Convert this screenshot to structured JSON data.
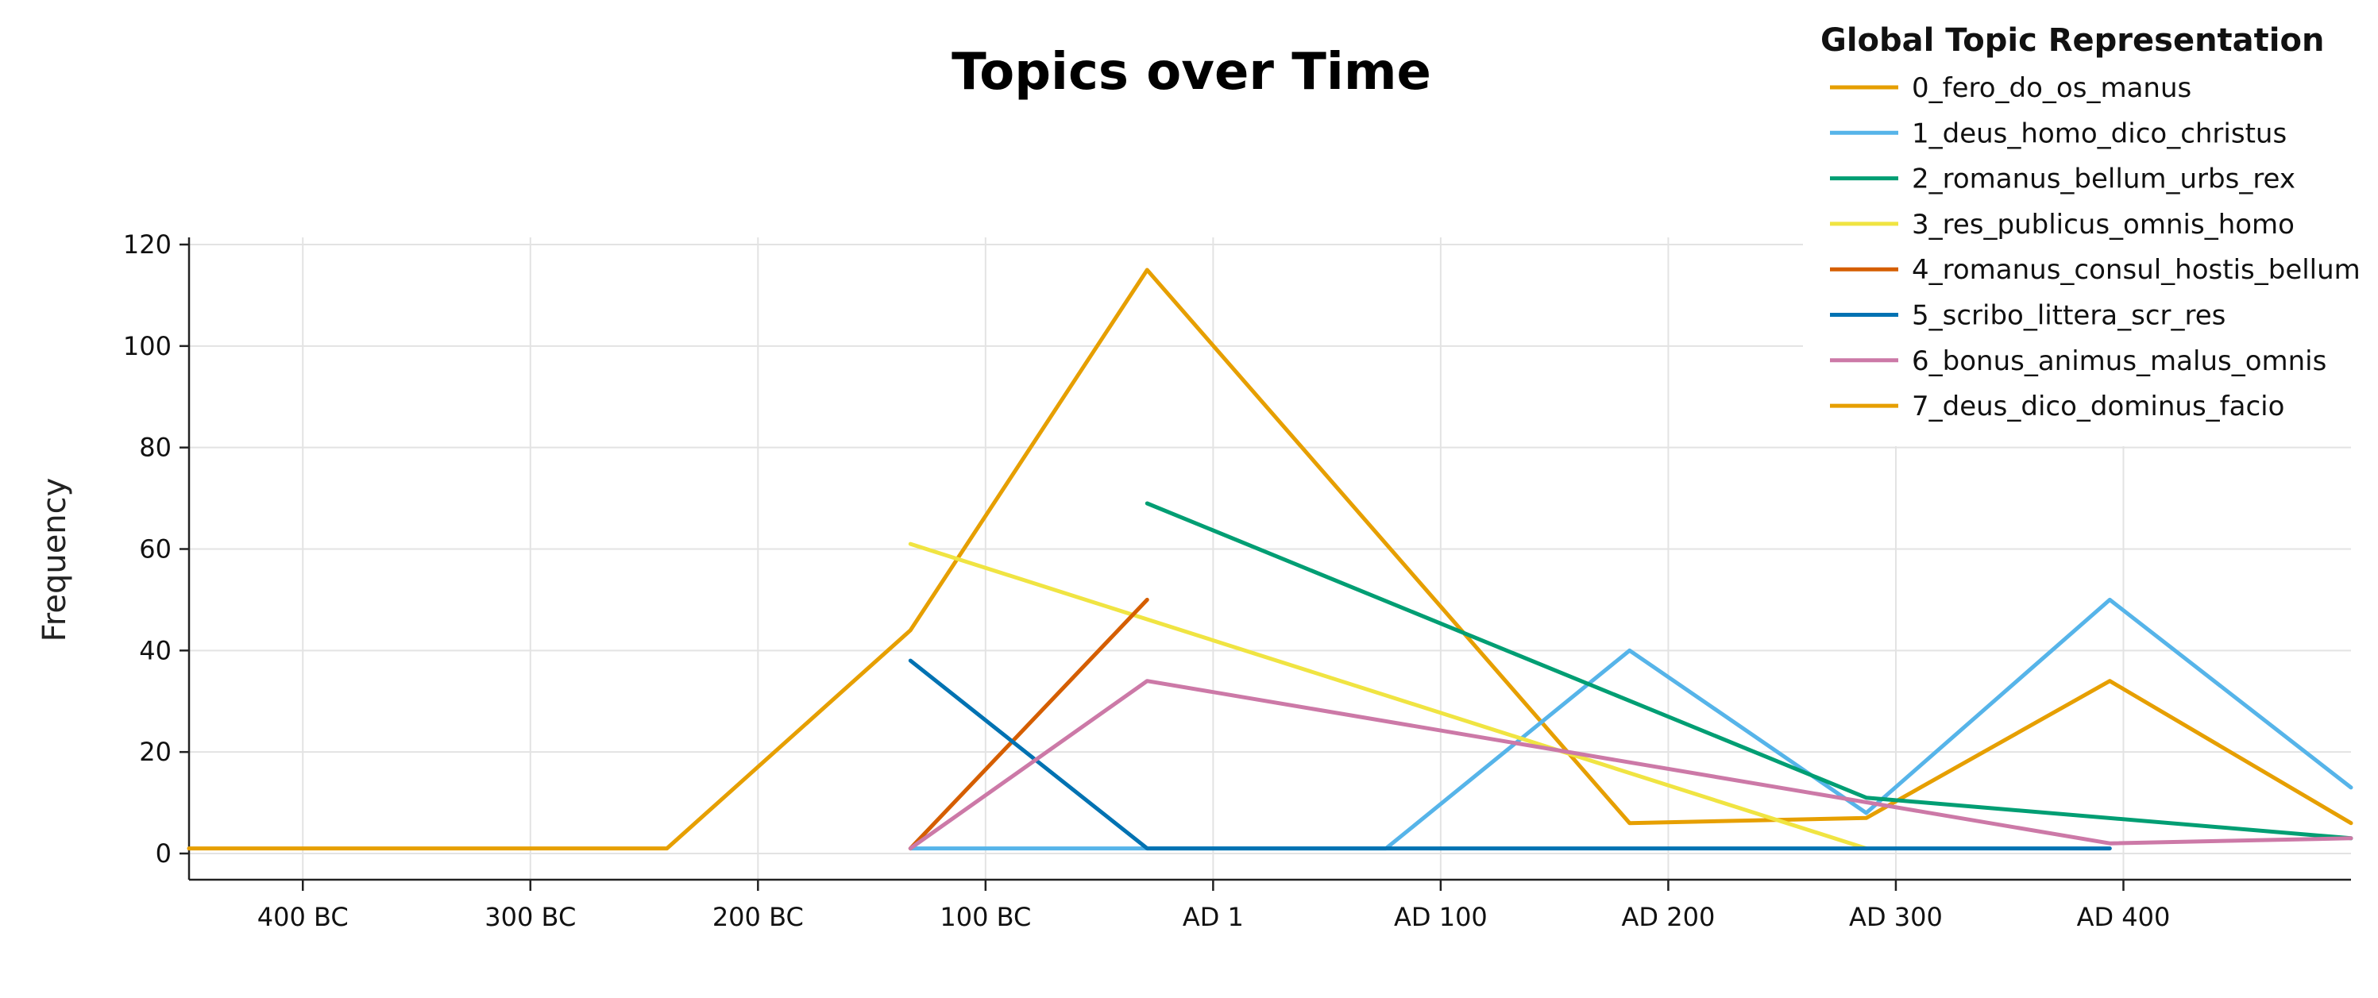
{
  "chart_data": {
    "type": "line",
    "title": "Topics over Time",
    "xlabel": "",
    "ylabel": "Frequency",
    "ylim": [
      0,
      120
    ],
    "xlim": [
      -450,
      500
    ],
    "yticks": [
      0,
      20,
      40,
      60,
      80,
      100,
      120
    ],
    "xticks": [
      {
        "value": -400,
        "label": "400 BC"
      },
      {
        "value": -300,
        "label": "300 BC"
      },
      {
        "value": -200,
        "label": "200 BC"
      },
      {
        "value": -100,
        "label": "100 BC"
      },
      {
        "value": 0,
        "label": "AD 1"
      },
      {
        "value": 100,
        "label": "AD 100"
      },
      {
        "value": 200,
        "label": "AD 200"
      },
      {
        "value": 300,
        "label": "AD 300"
      },
      {
        "value": 400,
        "label": "AD 400"
      }
    ],
    "grid": true,
    "legend": {
      "title": "Global Topic Representation",
      "placement": "top-right"
    },
    "series": [
      {
        "name": "0_fero_do_os_manus",
        "color": "#E69F00",
        "points": [
          [
            -450,
            1
          ],
          [
            -240,
            1
          ],
          [
            -133,
            44
          ],
          [
            -29,
            115
          ],
          [
            183,
            6
          ],
          [
            287,
            7
          ],
          [
            394,
            34
          ],
          [
            500,
            6
          ]
        ]
      },
      {
        "name": "1_deus_homo_dico_christus",
        "color": "#56B4E9",
        "points": [
          [
            -133,
            1
          ],
          [
            -29,
            1
          ],
          [
            76,
            1
          ],
          [
            183,
            40
          ],
          [
            287,
            8
          ],
          [
            394,
            50
          ],
          [
            500,
            13
          ]
        ]
      },
      {
        "name": "2_romanus_bellum_urbs_rex",
        "color": "#009E73",
        "points": [
          [
            -29,
            69
          ],
          [
            287,
            11
          ],
          [
            500,
            3
          ]
        ]
      },
      {
        "name": "3_res_publicus_omnis_homo",
        "color": "#F0E442",
        "points": [
          [
            -133,
            61
          ],
          [
            287,
            1
          ]
        ]
      },
      {
        "name": "4_romanus_consul_hostis_bellum",
        "color": "#D55E00",
        "points": [
          [
            -133,
            1
          ],
          [
            -29,
            50
          ]
        ]
      },
      {
        "name": "5_scribo_littera_scr_res",
        "color": "#0072B2",
        "points": [
          [
            -133,
            38
          ],
          [
            -29,
            1
          ],
          [
            394,
            1
          ]
        ]
      },
      {
        "name": "6_bonus_animus_malus_omnis",
        "color": "#CC79A7",
        "points": [
          [
            -133,
            1
          ],
          [
            -29,
            34
          ],
          [
            394,
            2
          ],
          [
            500,
            3
          ]
        ]
      },
      {
        "name": "7_deus_dico_dominus_facio",
        "color": "#E69F00",
        "points": []
      }
    ]
  }
}
